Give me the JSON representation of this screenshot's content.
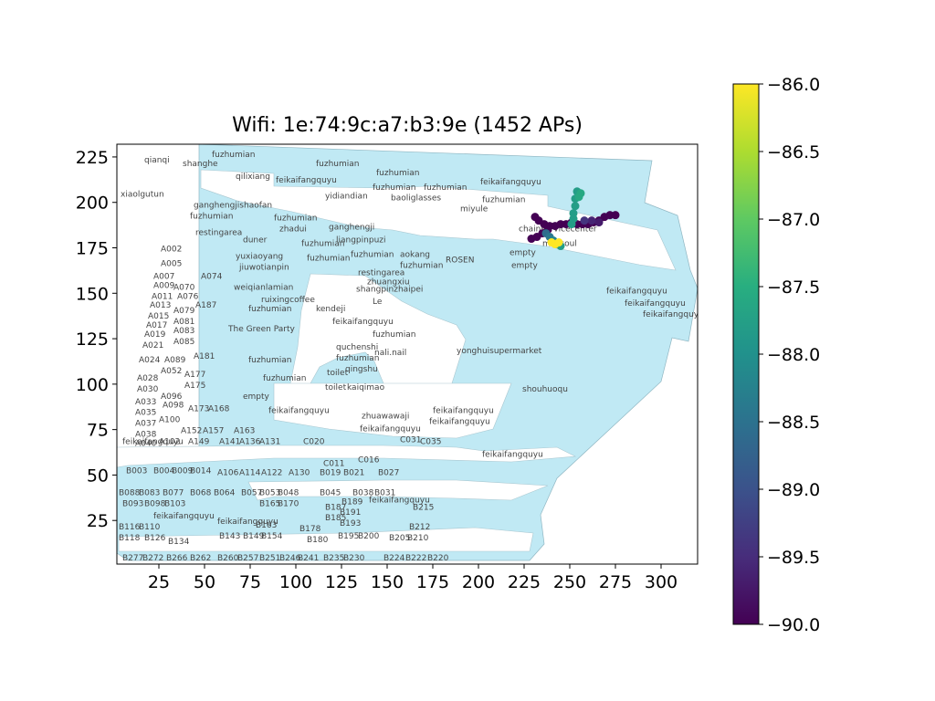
{
  "chart_data": {
    "type": "scatter",
    "title": "Wifi: 1e:74:9c:a7:b3:9e (1452 APs)",
    "xlabel": "",
    "ylabel": "",
    "xlim": [
      2,
      320
    ],
    "ylim": [
      1,
      232
    ],
    "xticks": [
      25,
      50,
      75,
      100,
      125,
      150,
      175,
      200,
      225,
      250,
      275,
      300
    ],
    "yticks": [
      25,
      50,
      75,
      100,
      125,
      150,
      175,
      200,
      225
    ],
    "colorbar": {
      "min": -90.0,
      "max": -86.0,
      "ticks": [
        "−86.0",
        "−86.5",
        "−87.0",
        "−87.5",
        "−88.0",
        "−88.5",
        "−89.0",
        "−89.5",
        "−90.0"
      ],
      "tick_values": [
        -86.0,
        -86.5,
        -87.0,
        -87.5,
        -88.0,
        -88.5,
        -89.0,
        -89.5,
        -90.0
      ],
      "colormap": "viridis"
    },
    "floorplan_fill": "#c0e9f4",
    "floorplan_edge": "#8fb6c2",
    "series": [
      {
        "values": [
          {
            "x": 231,
            "y": 192,
            "v": -90
          },
          {
            "x": 233,
            "y": 190,
            "v": -90
          },
          {
            "x": 236,
            "y": 188,
            "v": -90
          },
          {
            "x": 239,
            "y": 187,
            "v": -90
          },
          {
            "x": 242,
            "y": 187,
            "v": -90
          },
          {
            "x": 245,
            "y": 188,
            "v": -90
          },
          {
            "x": 248,
            "y": 188,
            "v": -90
          },
          {
            "x": 251,
            "y": 189,
            "v": -90
          },
          {
            "x": 254,
            "y": 188,
            "v": -90
          },
          {
            "x": 257,
            "y": 188,
            "v": -90
          },
          {
            "x": 260,
            "y": 188,
            "v": -90
          },
          {
            "x": 263,
            "y": 189,
            "v": -90
          },
          {
            "x": 266,
            "y": 190,
            "v": -90
          },
          {
            "x": 269,
            "y": 192,
            "v": -90
          },
          {
            "x": 272,
            "y": 193,
            "v": -90
          },
          {
            "x": 275,
            "y": 193,
            "v": -90
          },
          {
            "x": 229,
            "y": 180,
            "v": -90
          },
          {
            "x": 232,
            "y": 181,
            "v": -90
          },
          {
            "x": 235,
            "y": 183,
            "v": -90
          },
          {
            "x": 238,
            "y": 185,
            "v": -90
          },
          {
            "x": 254,
            "y": 206,
            "v": -87.8
          },
          {
            "x": 253,
            "y": 202,
            "v": -87.8
          },
          {
            "x": 253,
            "y": 198,
            "v": -87.8
          },
          {
            "x": 252,
            "y": 194,
            "v": -87.8
          },
          {
            "x": 252,
            "y": 191,
            "v": -87.8
          },
          {
            "x": 251,
            "y": 188,
            "v": -87.8
          },
          {
            "x": 256,
            "y": 205,
            "v": -87.6
          },
          {
            "x": 255,
            "y": 203,
            "v": -87.6
          },
          {
            "x": 237,
            "y": 183,
            "v": -88.6
          },
          {
            "x": 239,
            "y": 181,
            "v": -88.4
          },
          {
            "x": 241,
            "y": 179,
            "v": -88.2
          },
          {
            "x": 243,
            "y": 177,
            "v": -88.0
          },
          {
            "x": 245,
            "y": 176,
            "v": -87.8
          },
          {
            "x": 240,
            "y": 178,
            "v": -86.0
          },
          {
            "x": 242,
            "y": 177,
            "v": -86.0
          },
          {
            "x": 244,
            "y": 178,
            "v": -86.0
          },
          {
            "x": 262,
            "y": 190,
            "v": -89.6
          },
          {
            "x": 266,
            "y": 189,
            "v": -89.7
          },
          {
            "x": 258,
            "y": 190,
            "v": -89.4
          }
        ]
      }
    ],
    "room_labels": [
      {
        "text": "qianqi",
        "x": 15,
        "y": 222
      },
      {
        "text": "shanghe",
        "x": 36,
        "y": 220
      },
      {
        "text": "fuzhumian",
        "x": 52,
        "y": 225
      },
      {
        "text": "qilixiang",
        "x": 65,
        "y": 213
      },
      {
        "text": "feikaifangquyu",
        "x": 87,
        "y": 211
      },
      {
        "text": "fuzhumian",
        "x": 109,
        "y": 220
      },
      {
        "text": "fuzhumian",
        "x": 142,
        "y": 215
      },
      {
        "text": "fuzhumian",
        "x": 140,
        "y": 207
      },
      {
        "text": "fuzhumian",
        "x": 168,
        "y": 207
      },
      {
        "text": "feikaifangquyu",
        "x": 199,
        "y": 210
      },
      {
        "text": "xiaolgutun",
        "x": 2,
        "y": 203
      },
      {
        "text": "ganghengjishaofan",
        "x": 42,
        "y": 197
      },
      {
        "text": "yidiandian",
        "x": 114,
        "y": 202
      },
      {
        "text": "baoliglasses",
        "x": 150,
        "y": 201
      },
      {
        "text": "miyule",
        "x": 188,
        "y": 195
      },
      {
        "text": "fuzhumian",
        "x": 200,
        "y": 200
      },
      {
        "text": "fuzhumian",
        "x": 40,
        "y": 191
      },
      {
        "text": "fuzhumian",
        "x": 86,
        "y": 190
      },
      {
        "text": "zhadui",
        "x": 89,
        "y": 184
      },
      {
        "text": "ganghengji",
        "x": 116,
        "y": 185
      },
      {
        "text": "restingarea",
        "x": 43,
        "y": 182
      },
      {
        "text": "duner",
        "x": 69,
        "y": 178
      },
      {
        "text": "liangpinpuzi",
        "x": 120,
        "y": 178
      },
      {
        "text": "fuzhumian",
        "x": 101,
        "y": 176
      },
      {
        "text": "A002",
        "x": 24,
        "y": 173
      },
      {
        "text": "yuxiaoyang",
        "x": 65,
        "y": 169
      },
      {
        "text": "fuzhumian",
        "x": 104,
        "y": 168
      },
      {
        "text": "fuzhumian",
        "x": 128,
        "y": 170
      },
      {
        "text": "aokang",
        "x": 155,
        "y": 170
      },
      {
        "text": "ROSEN",
        "x": 180,
        "y": 167
      },
      {
        "text": "empty",
        "x": 215,
        "y": 171
      },
      {
        "text": "minisoul",
        "x": 233,
        "y": 176
      },
      {
        "text": "chainservicecenter",
        "x": 220,
        "y": 184
      },
      {
        "text": "A005",
        "x": 24,
        "y": 165
      },
      {
        "text": "jiuwotianpin",
        "x": 67,
        "y": 163
      },
      {
        "text": "fuzhumian",
        "x": 155,
        "y": 164
      },
      {
        "text": "empty",
        "x": 216,
        "y": 164
      },
      {
        "text": "restingarea",
        "x": 132,
        "y": 160
      },
      {
        "text": "A007",
        "x": 20,
        "y": 158
      },
      {
        "text": "A074",
        "x": 46,
        "y": 158
      },
      {
        "text": "zhuangxiu",
        "x": 137,
        "y": 155
      },
      {
        "text": "A009",
        "x": 20,
        "y": 153
      },
      {
        "text": "A070",
        "x": 31,
        "y": 152
      },
      {
        "text": "weiqianlamian",
        "x": 64,
        "y": 152
      },
      {
        "text": "shangpinzhaipei",
        "x": 131,
        "y": 151
      },
      {
        "text": "feikaifangquyu",
        "x": 268,
        "y": 150
      },
      {
        "text": "A011",
        "x": 19,
        "y": 147
      },
      {
        "text": "A076",
        "x": 33,
        "y": 147
      },
      {
        "text": "ruixingcoffee",
        "x": 79,
        "y": 145
      },
      {
        "text": "Le",
        "x": 140,
        "y": 144
      },
      {
        "text": "feikaifangquyu",
        "x": 278,
        "y": 143
      },
      {
        "text": "A013",
        "x": 18,
        "y": 142
      },
      {
        "text": "A187",
        "x": 43,
        "y": 142
      },
      {
        "text": "kendeji",
        "x": 109,
        "y": 140
      },
      {
        "text": "fuzhumian",
        "x": 72,
        "y": 140
      },
      {
        "text": "feikaifangquyu",
        "x": 288,
        "y": 137
      },
      {
        "text": "A079",
        "x": 31,
        "y": 139
      },
      {
        "text": "A015",
        "x": 17,
        "y": 136
      },
      {
        "text": "feikaifangquyu",
        "x": 118,
        "y": 133
      },
      {
        "text": "A081",
        "x": 31,
        "y": 133
      },
      {
        "text": "A017",
        "x": 16,
        "y": 131
      },
      {
        "text": "The Green Party",
        "x": 61,
        "y": 129
      },
      {
        "text": "A083",
        "x": 31,
        "y": 128
      },
      {
        "text": "fuzhumian",
        "x": 140,
        "y": 126
      },
      {
        "text": "A019",
        "x": 15,
        "y": 126
      },
      {
        "text": "A085",
        "x": 31,
        "y": 122
      },
      {
        "text": "A021",
        "x": 14,
        "y": 120
      },
      {
        "text": "quchenshi",
        "x": 120,
        "y": 119
      },
      {
        "text": "yonghuisupermarket",
        "x": 186,
        "y": 117
      },
      {
        "text": "nali.nail",
        "x": 141,
        "y": 116
      },
      {
        "text": "A181",
        "x": 42,
        "y": 114
      },
      {
        "text": "fuzhumian",
        "x": 120,
        "y": 113
      },
      {
        "text": "A024",
        "x": 12,
        "y": 112
      },
      {
        "text": "A089",
        "x": 26,
        "y": 112
      },
      {
        "text": "fuzhumian",
        "x": 72,
        "y": 112
      },
      {
        "text": "qingshu",
        "x": 125,
        "y": 107
      },
      {
        "text": "A052",
        "x": 24,
        "y": 106
      },
      {
        "text": "A177",
        "x": 37,
        "y": 104
      },
      {
        "text": "toilet",
        "x": 115,
        "y": 105
      },
      {
        "text": "A028",
        "x": 11,
        "y": 102
      },
      {
        "text": "fuzhumian",
        "x": 80,
        "y": 102
      },
      {
        "text": "A175",
        "x": 37,
        "y": 98
      },
      {
        "text": "shouhuoqu",
        "x": 222,
        "y": 96
      },
      {
        "text": "A030",
        "x": 11,
        "y": 96
      },
      {
        "text": "toilet",
        "x": 114,
        "y": 97
      },
      {
        "text": "kaiqimao",
        "x": 126,
        "y": 97
      },
      {
        "text": "A096",
        "x": 24,
        "y": 92
      },
      {
        "text": "empty",
        "x": 69,
        "y": 92
      },
      {
        "text": "A033",
        "x": 10,
        "y": 89
      },
      {
        "text": "A098",
        "x": 25,
        "y": 87
      },
      {
        "text": "A173",
        "x": 39,
        "y": 85
      },
      {
        "text": "A168",
        "x": 50,
        "y": 85
      },
      {
        "text": "feikaifangquyu",
        "x": 83,
        "y": 84
      },
      {
        "text": "feikaifangquyu",
        "x": 173,
        "y": 84
      },
      {
        "text": "A035",
        "x": 10,
        "y": 83
      },
      {
        "text": "zhuawawaji",
        "x": 134,
        "y": 81
      },
      {
        "text": "A100",
        "x": 23,
        "y": 79
      },
      {
        "text": "A037",
        "x": 10,
        "y": 77
      },
      {
        "text": "feikaifangquyu",
        "x": 171,
        "y": 78
      },
      {
        "text": "A152",
        "x": 35,
        "y": 73
      },
      {
        "text": "A157",
        "x": 47,
        "y": 73
      },
      {
        "text": "A163",
        "x": 64,
        "y": 73
      },
      {
        "text": "feikaifangquyu",
        "x": 133,
        "y": 74
      },
      {
        "text": "A038",
        "x": 10,
        "y": 71
      },
      {
        "text": "C031",
        "x": 155,
        "y": 68
      },
      {
        "text": "C035",
        "x": 166,
        "y": 67
      },
      {
        "text": "feikaifangquyu",
        "x": 3,
        "y": 67
      },
      {
        "text": "A040",
        "x": 10,
        "y": 66
      },
      {
        "text": "A102",
        "x": 23,
        "y": 67
      },
      {
        "text": "A149",
        "x": 39,
        "y": 67
      },
      {
        "text": "A141",
        "x": 56,
        "y": 67
      },
      {
        "text": "A136",
        "x": 67,
        "y": 67
      },
      {
        "text": "A131",
        "x": 78,
        "y": 67
      },
      {
        "text": "C020",
        "x": 102,
        "y": 67
      },
      {
        "text": "feikaifangquyu",
        "x": 200,
        "y": 60
      },
      {
        "text": "C016",
        "x": 132,
        "y": 57
      },
      {
        "text": "C011",
        "x": 113,
        "y": 55
      },
      {
        "text": "B003",
        "x": 5,
        "y": 51
      },
      {
        "text": "B004",
        "x": 20,
        "y": 51
      },
      {
        "text": "B009",
        "x": 30,
        "y": 51
      },
      {
        "text": "B014",
        "x": 40,
        "y": 51
      },
      {
        "text": "A106",
        "x": 55,
        "y": 50
      },
      {
        "text": "A114",
        "x": 67,
        "y": 50
      },
      {
        "text": "A122",
        "x": 79,
        "y": 50
      },
      {
        "text": "A130",
        "x": 94,
        "y": 50
      },
      {
        "text": "B019",
        "x": 111,
        "y": 50
      },
      {
        "text": "B021",
        "x": 124,
        "y": 50
      },
      {
        "text": "B027",
        "x": 143,
        "y": 50
      },
      {
        "text": "B088",
        "x": 1,
        "y": 39
      },
      {
        "text": "B083",
        "x": 12,
        "y": 39
      },
      {
        "text": "B077",
        "x": 25,
        "y": 39
      },
      {
        "text": "B068",
        "x": 40,
        "y": 39
      },
      {
        "text": "B064",
        "x": 53,
        "y": 39
      },
      {
        "text": "B057",
        "x": 68,
        "y": 39
      },
      {
        "text": "B053",
        "x": 78,
        "y": 39
      },
      {
        "text": "B048",
        "x": 88,
        "y": 39
      },
      {
        "text": "B045",
        "x": 111,
        "y": 39
      },
      {
        "text": "B038",
        "x": 129,
        "y": 39
      },
      {
        "text": "B031",
        "x": 141,
        "y": 39
      },
      {
        "text": "B093",
        "x": 3,
        "y": 33
      },
      {
        "text": "B098",
        "x": 15,
        "y": 33
      },
      {
        "text": "B103",
        "x": 26,
        "y": 33
      },
      {
        "text": "B165",
        "x": 78,
        "y": 33
      },
      {
        "text": "B170",
        "x": 88,
        "y": 33
      },
      {
        "text": "B189",
        "x": 123,
        "y": 34
      },
      {
        "text": "feikaifangquyu",
        "x": 138,
        "y": 35
      },
      {
        "text": "B187",
        "x": 114,
        "y": 31
      },
      {
        "text": "B215",
        "x": 162,
        "y": 31
      },
      {
        "text": "B191",
        "x": 122,
        "y": 28
      },
      {
        "text": "B185",
        "x": 114,
        "y": 25
      },
      {
        "text": "feikaifangquyu",
        "x": 20,
        "y": 26
      },
      {
        "text": "feikaifangquyu",
        "x": 55,
        "y": 23
      },
      {
        "text": "B193",
        "x": 122,
        "y": 22
      },
      {
        "text": "B116",
        "x": 1,
        "y": 20
      },
      {
        "text": "B110",
        "x": 12,
        "y": 20
      },
      {
        "text": "B163",
        "x": 76,
        "y": 21
      },
      {
        "text": "B178",
        "x": 100,
        "y": 19
      },
      {
        "text": "B212",
        "x": 160,
        "y": 20
      },
      {
        "text": "B118",
        "x": 1,
        "y": 14
      },
      {
        "text": "B126",
        "x": 15,
        "y": 14
      },
      {
        "text": "B143",
        "x": 56,
        "y": 15
      },
      {
        "text": "B149",
        "x": 69,
        "y": 15
      },
      {
        "text": "B154",
        "x": 79,
        "y": 15
      },
      {
        "text": "B195",
        "x": 121,
        "y": 15
      },
      {
        "text": "B200",
        "x": 132,
        "y": 15
      },
      {
        "text": "B205",
        "x": 149,
        "y": 14
      },
      {
        "text": "B210",
        "x": 159,
        "y": 14
      },
      {
        "text": "B134",
        "x": 28,
        "y": 12
      },
      {
        "text": "B180",
        "x": 104,
        "y": 13
      },
      {
        "text": "B277",
        "x": 3,
        "y": 3
      },
      {
        "text": "B272",
        "x": 14,
        "y": 3
      },
      {
        "text": "B266",
        "x": 27,
        "y": 3
      },
      {
        "text": "B262",
        "x": 40,
        "y": 3
      },
      {
        "text": "B260",
        "x": 55,
        "y": 3
      },
      {
        "text": "B257",
        "x": 66,
        "y": 3
      },
      {
        "text": "B251",
        "x": 78,
        "y": 3
      },
      {
        "text": "B246",
        "x": 89,
        "y": 3
      },
      {
        "text": "B241",
        "x": 99,
        "y": 3
      },
      {
        "text": "B235",
        "x": 113,
        "y": 3
      },
      {
        "text": "B230",
        "x": 124,
        "y": 3
      },
      {
        "text": "B224",
        "x": 146,
        "y": 3
      },
      {
        "text": "B222",
        "x": 158,
        "y": 3
      },
      {
        "text": "B220",
        "x": 170,
        "y": 3
      }
    ]
  }
}
